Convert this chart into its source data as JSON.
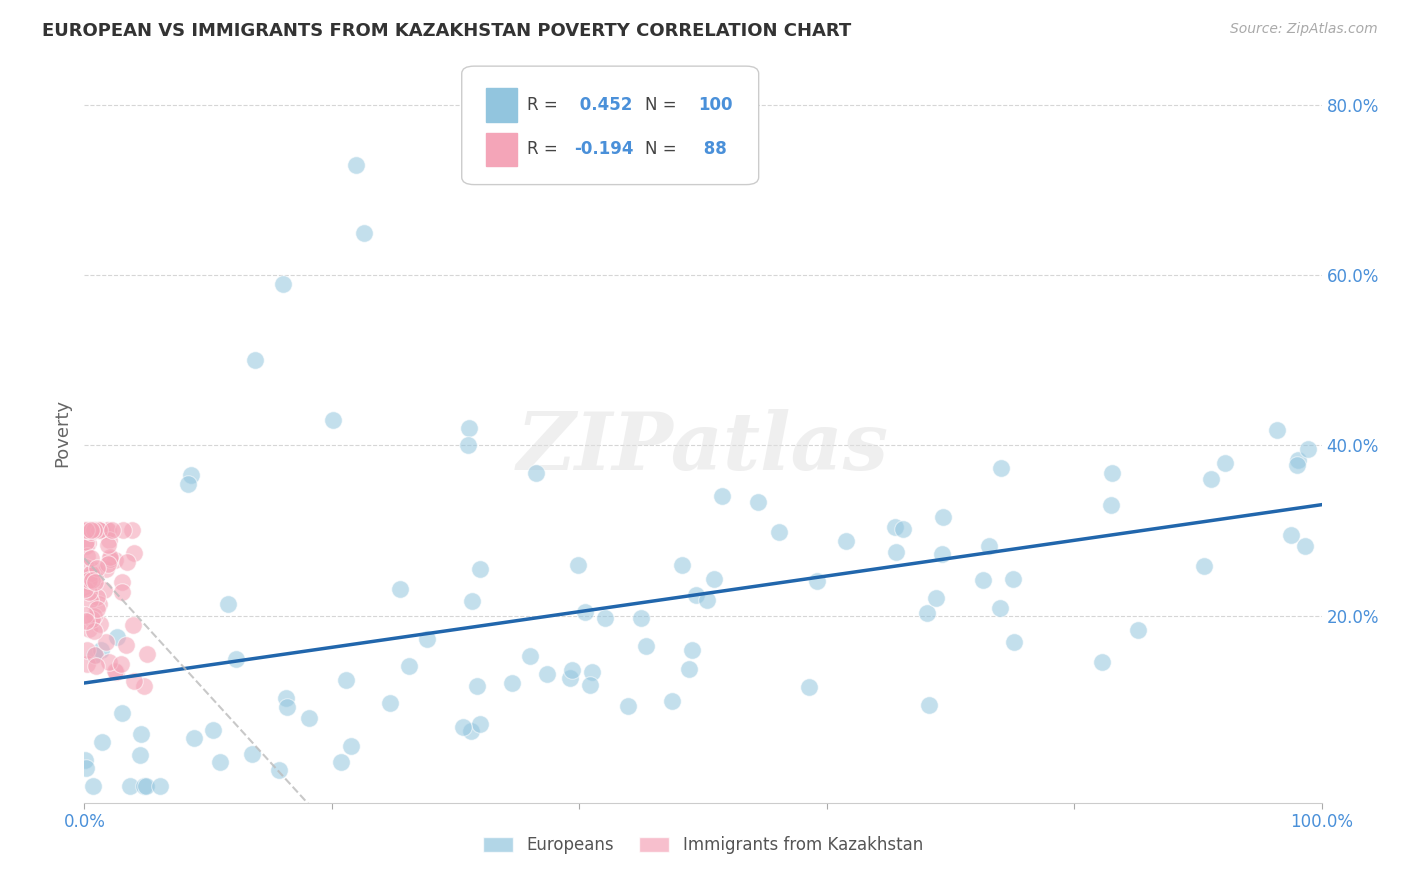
{
  "title": "EUROPEAN VS IMMIGRANTS FROM KAZAKHSTAN POVERTY CORRELATION CHART",
  "source": "Source: ZipAtlas.com",
  "ylabel": "Poverty",
  "xlim": [
    0.0,
    1.0
  ],
  "ylim": [
    -0.02,
    0.85
  ],
  "xtick_positions": [
    0.0,
    0.2,
    0.4,
    0.6,
    0.8,
    1.0
  ],
  "xticklabels": [
    "0.0%",
    "",
    "",
    "",
    "",
    "100.0%"
  ],
  "ytick_positions": [
    0.0,
    0.2,
    0.4,
    0.6,
    0.8
  ],
  "yticklabels_right": [
    "",
    "20.0%",
    "40.0%",
    "60.0%",
    "80.0%"
  ],
  "blue_R": 0.452,
  "blue_N": 100,
  "pink_R": -0.194,
  "pink_N": 88,
  "blue_color": "#92c5de",
  "pink_color": "#f4a5b8",
  "blue_line_color": "#2166ac",
  "pink_line_color": "#d9d9d9",
  "watermark": "ZIPatlas",
  "legend_europeans": "Europeans",
  "legend_kazakhstan": "Immigrants from Kazakhstan",
  "background_color": "#ffffff",
  "grid_color": "#cccccc",
  "title_color": "#333333",
  "axis_label_color": "#666666",
  "tick_color": "#4a90d9",
  "title_fontsize": 13,
  "source_fontsize": 10,
  "tick_fontsize": 12
}
